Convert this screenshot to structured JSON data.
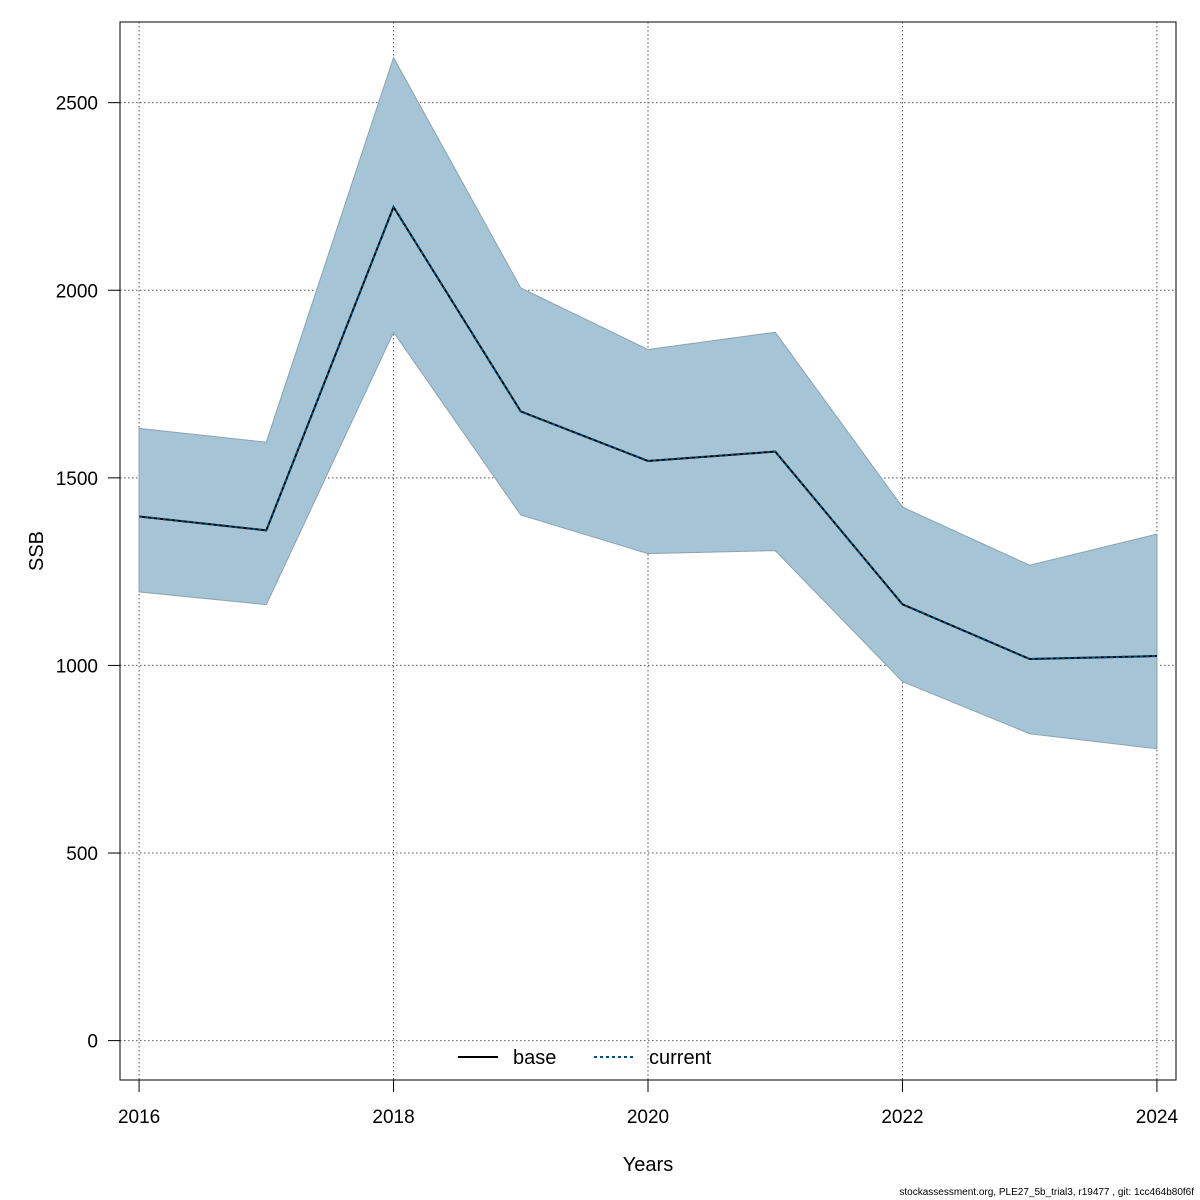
{
  "chart_data": {
    "type": "line",
    "title": "",
    "xlabel": "Years",
    "ylabel": "SSB",
    "x": [
      2016,
      2017,
      2018,
      2019,
      2020,
      2021,
      2022,
      2023,
      2024
    ],
    "xlim": [
      2015.85,
      2024.15
    ],
    "ylim": [
      -105,
      2715
    ],
    "xticks": [
      2016,
      2018,
      2020,
      2022,
      2024
    ],
    "yticks": [
      0,
      500,
      1000,
      1500,
      2000,
      2500
    ],
    "grid": true,
    "legend_position": "bottom-center",
    "series": [
      {
        "name": "base",
        "style": "solid",
        "color": "#000000",
        "values": [
          1397,
          1360,
          2222,
          1677,
          1545,
          1570,
          1163,
          1017,
          1025
        ]
      },
      {
        "name": "current",
        "style": "dotted",
        "color": "#00507a",
        "values": [
          1397,
          1360,
          2222,
          1677,
          1545,
          1570,
          1163,
          1017,
          1025
        ]
      }
    ],
    "confidence_band": {
      "color": "#a5c4d5",
      "lower": [
        1196,
        1162,
        1888,
        1401,
        1298,
        1306,
        957,
        818,
        778
      ],
      "upper": [
        1632,
        1595,
        2620,
        2006,
        1842,
        1888,
        1422,
        1267,
        1350
      ]
    }
  },
  "footer": "stockassessment.org, PLE27_5b_trial3, r19477 , git: 1cc464b80f6f"
}
